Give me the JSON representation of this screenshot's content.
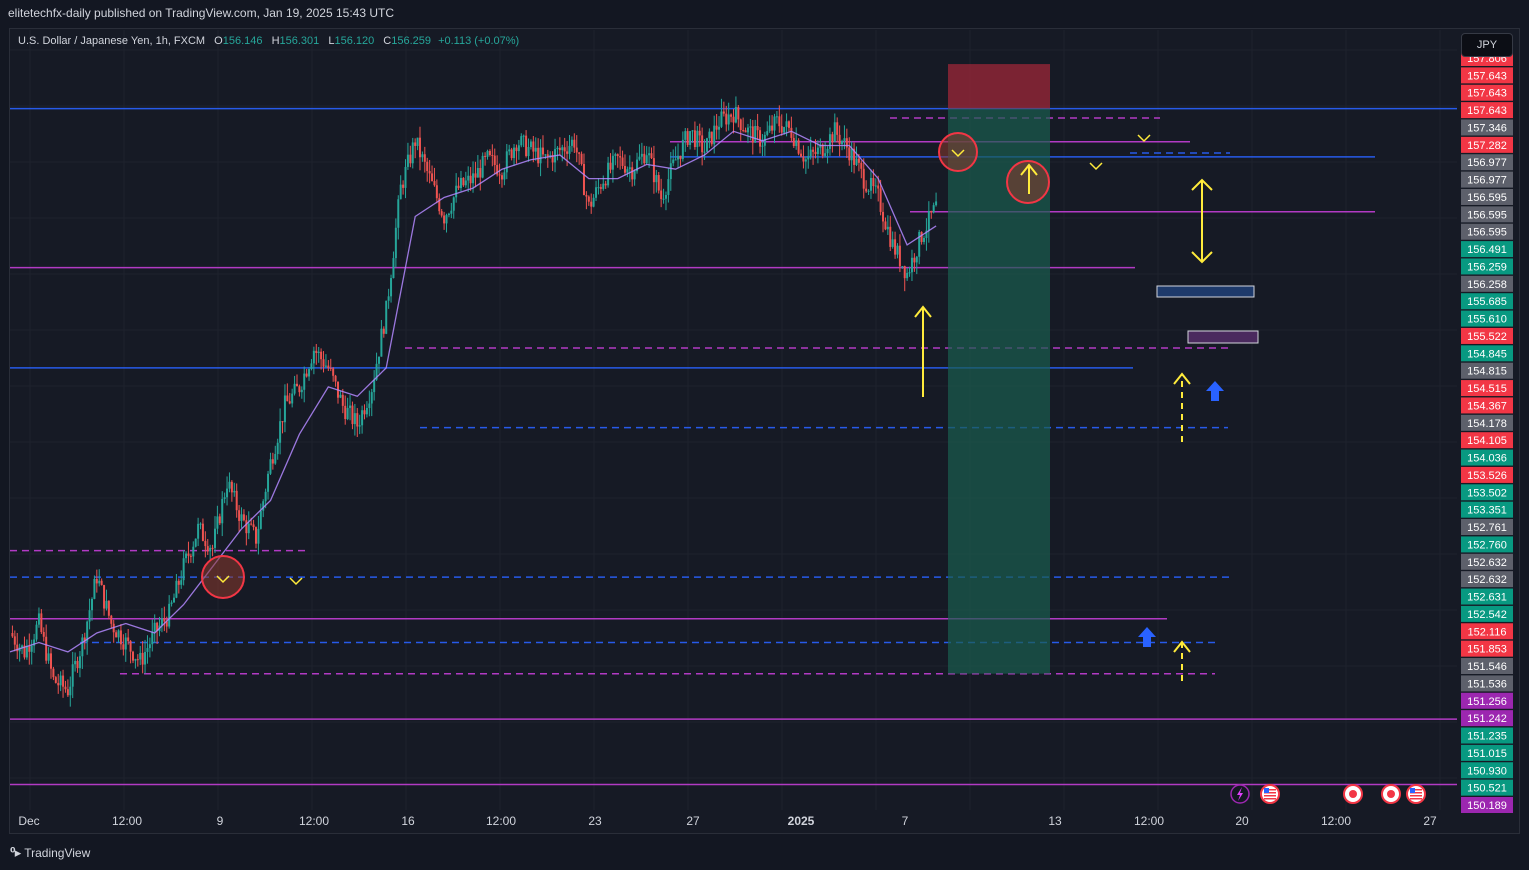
{
  "header": {
    "publisher_line": "elitetechfx-daily published on TradingView.com, Jan 19, 2025 15:43 UTC"
  },
  "legend": {
    "symbol": "U.S. Dollar / Japanese Yen, 1h, FXCM",
    "open_label": "O",
    "open": "156.146",
    "high_label": "H",
    "high": "156.301",
    "low_label": "L",
    "low": "156.120",
    "close_label": "C",
    "close": "156.259",
    "change": "+0.113 (+0.07%)"
  },
  "currency_button": "JPY",
  "footer": {
    "brand": "TradingView"
  },
  "colors": {
    "background": "#131722",
    "up": "#26a69a",
    "down": "#ef5350",
    "magenta": "#c33ed6",
    "blue": "#2962ff",
    "yellow": "#ffeb3b"
  },
  "chart_data": {
    "type": "candlestick",
    "title": "U.S. Dollar / Japanese Yen, 1h, FXCM",
    "xlabel": "",
    "ylabel": "",
    "ylim": [
      149.93,
      158.17
    ],
    "grid": true,
    "x_ticks": [
      "Dec",
      "12:00",
      "9",
      "12:00",
      "16",
      "12:00",
      "23",
      "27",
      "2025",
      "7",
      "13",
      "12:00",
      "20",
      "12:00",
      "27"
    ],
    "price_path": [
      [
        0,
        151.8
      ],
      [
        3,
        151.6
      ],
      [
        6,
        151.9
      ],
      [
        9,
        151.3
      ],
      [
        12,
        151.2
      ],
      [
        15,
        151.7
      ],
      [
        18,
        152.4
      ],
      [
        21,
        151.9
      ],
      [
        24,
        151.7
      ],
      [
        27,
        151.5
      ],
      [
        30,
        151.8
      ],
      [
        33,
        152.0
      ],
      [
        36,
        152.5
      ],
      [
        39,
        152.9
      ],
      [
        42,
        152.7
      ],
      [
        45,
        153.4
      ],
      [
        48,
        153.0
      ],
      [
        51,
        152.8
      ],
      [
        54,
        153.6
      ],
      [
        57,
        154.2
      ],
      [
        60,
        154.4
      ],
      [
        63,
        154.8
      ],
      [
        66,
        154.6
      ],
      [
        69,
        154.2
      ],
      [
        72,
        154.0
      ],
      [
        75,
        154.4
      ],
      [
        78,
        155.2
      ],
      [
        81,
        156.5
      ],
      [
        84,
        157.0
      ],
      [
        87,
        156.6
      ],
      [
        90,
        156.2
      ],
      [
        93,
        156.5
      ],
      [
        96,
        156.6
      ],
      [
        99,
        156.8
      ],
      [
        102,
        156.7
      ],
      [
        105,
        157.0
      ],
      [
        108,
        156.9
      ],
      [
        111,
        156.8
      ],
      [
        114,
        156.9
      ],
      [
        117,
        157.0
      ],
      [
        120,
        156.3
      ],
      [
        123,
        156.6
      ],
      [
        126,
        156.8
      ],
      [
        129,
        156.7
      ],
      [
        132,
        156.9
      ],
      [
        135,
        156.4
      ],
      [
        138,
        156.8
      ],
      [
        141,
        157.1
      ],
      [
        144,
        156.9
      ],
      [
        147,
        157.2
      ],
      [
        150,
        157.3
      ],
      [
        153,
        157.1
      ],
      [
        156,
        157.0
      ],
      [
        159,
        157.2
      ],
      [
        162,
        157.1
      ],
      [
        165,
        156.8
      ],
      [
        168,
        156.9
      ],
      [
        171,
        157.1
      ],
      [
        174,
        156.9
      ],
      [
        177,
        156.6
      ],
      [
        180,
        156.4
      ],
      [
        183,
        155.9
      ],
      [
        186,
        155.6
      ],
      [
        189,
        156.0
      ],
      [
        192,
        156.3
      ]
    ],
    "ema_path": [
      [
        0,
        151.6
      ],
      [
        6,
        151.7
      ],
      [
        12,
        151.6
      ],
      [
        18,
        151.8
      ],
      [
        24,
        151.9
      ],
      [
        30,
        151.8
      ],
      [
        36,
        152.1
      ],
      [
        42,
        152.5
      ],
      [
        48,
        152.9
      ],
      [
        54,
        153.2
      ],
      [
        60,
        153.9
      ],
      [
        66,
        154.4
      ],
      [
        72,
        154.3
      ],
      [
        78,
        154.6
      ],
      [
        84,
        156.2
      ],
      [
        90,
        156.4
      ],
      [
        96,
        156.5
      ],
      [
        102,
        156.7
      ],
      [
        108,
        156.8
      ],
      [
        114,
        156.85
      ],
      [
        120,
        156.6
      ],
      [
        126,
        156.6
      ],
      [
        132,
        156.75
      ],
      [
        138,
        156.7
      ],
      [
        144,
        156.85
      ],
      [
        150,
        157.1
      ],
      [
        156,
        157.0
      ],
      [
        162,
        157.1
      ],
      [
        168,
        156.95
      ],
      [
        174,
        156.95
      ],
      [
        180,
        156.6
      ],
      [
        186,
        155.9
      ],
      [
        192,
        156.1
      ]
    ],
    "horizontal_levels": [
      {
        "price": 157.34,
        "style": "solid",
        "color": "blue"
      },
      {
        "price": 157.24,
        "style": "dashed",
        "color": "magenta"
      },
      {
        "price": 156.99,
        "style": "solid",
        "color": "magenta"
      },
      {
        "price": 156.83,
        "style": "solid",
        "color": "blue"
      },
      {
        "price": 156.87,
        "style": "dashed",
        "color": "blue"
      },
      {
        "price": 156.25,
        "style": "solid",
        "color": "magenta"
      },
      {
        "price": 155.66,
        "style": "solid",
        "color": "magenta"
      },
      {
        "price": 154.81,
        "style": "dashed",
        "color": "magenta"
      },
      {
        "price": 154.6,
        "style": "solid",
        "color": "blue"
      },
      {
        "price": 153.97,
        "style": "dashed",
        "color": "blue"
      },
      {
        "price": 152.67,
        "style": "dashed",
        "color": "magenta"
      },
      {
        "price": 152.39,
        "style": "dashed",
        "color": "blue"
      },
      {
        "price": 151.95,
        "style": "solid",
        "color": "magenta"
      },
      {
        "price": 151.7,
        "style": "dashed",
        "color": "blue"
      },
      {
        "price": 151.37,
        "style": "dashed",
        "color": "magenta"
      },
      {
        "price": 150.89,
        "style": "solid",
        "color": "magenta"
      },
      {
        "price": 150.2,
        "style": "solid",
        "color": "magenta"
      }
    ],
    "price_labels": [
      {
        "text": "157.806",
        "color": "#f23645"
      },
      {
        "text": "157.643",
        "color": "#f23645"
      },
      {
        "text": "157.643",
        "color": "#f23645"
      },
      {
        "text": "157.643",
        "color": "#f23645"
      },
      {
        "text": "157.346",
        "color": "#5d606b"
      },
      {
        "text": "157.282",
        "color": "#f23645"
      },
      {
        "text": "156.977",
        "color": "#5d606b"
      },
      {
        "text": "156.977",
        "color": "#5d606b"
      },
      {
        "text": "156.595",
        "color": "#5d606b"
      },
      {
        "text": "156.595",
        "color": "#5d606b"
      },
      {
        "text": "156.595",
        "color": "#5d606b"
      },
      {
        "text": "156.491",
        "color": "#089981"
      },
      {
        "text": "156.259",
        "color": "#089981"
      },
      {
        "text": "156.258",
        "color": "#5d606b"
      },
      {
        "text": "155.685",
        "color": "#089981"
      },
      {
        "text": "155.610",
        "color": "#089981"
      },
      {
        "text": "155.522",
        "color": "#f23645"
      },
      {
        "text": "154.845",
        "color": "#089981"
      },
      {
        "text": "154.815",
        "color": "#5d606b"
      },
      {
        "text": "154.515",
        "color": "#f23645"
      },
      {
        "text": "154.367",
        "color": "#f23645"
      },
      {
        "text": "154.178",
        "color": "#5d606b"
      },
      {
        "text": "154.105",
        "color": "#f23645"
      },
      {
        "text": "154.036",
        "color": "#089981"
      },
      {
        "text": "153.526",
        "color": "#f23645"
      },
      {
        "text": "153.502",
        "color": "#089981"
      },
      {
        "text": "153.351",
        "color": "#089981"
      },
      {
        "text": "152.761",
        "color": "#5d606b"
      },
      {
        "text": "152.760",
        "color": "#089981"
      },
      {
        "text": "152.632",
        "color": "#5d606b"
      },
      {
        "text": "152.632",
        "color": "#5d606b"
      },
      {
        "text": "152.631",
        "color": "#089981"
      },
      {
        "text": "152.542",
        "color": "#089981"
      },
      {
        "text": "152.116",
        "color": "#f23645"
      },
      {
        "text": "151.853",
        "color": "#f23645"
      },
      {
        "text": "151.546",
        "color": "#5d606b"
      },
      {
        "text": "151.536",
        "color": "#5d606b"
      },
      {
        "text": "151.256",
        "color": "#9c27b0"
      },
      {
        "text": "151.242",
        "color": "#9c27b0"
      },
      {
        "text": "151.235",
        "color": "#089981"
      },
      {
        "text": "151.015",
        "color": "#089981"
      },
      {
        "text": "150.930",
        "color": "#089981"
      },
      {
        "text": "150.521",
        "color": "#089981"
      },
      {
        "text": "150.189",
        "color": "#9c27b0"
      }
    ],
    "position_tool": {
      "type": "long",
      "entry": 157.34,
      "stop": 157.81,
      "target": 151.37
    },
    "annotations": {
      "circles": 4,
      "arrows": [
        "up",
        "up",
        "up",
        "up",
        "double"
      ],
      "zones": 2,
      "event_icons": [
        "lightning-icon",
        "us-flag-icon",
        "target-icon",
        "target-icon",
        "us-flag-icon"
      ]
    }
  }
}
